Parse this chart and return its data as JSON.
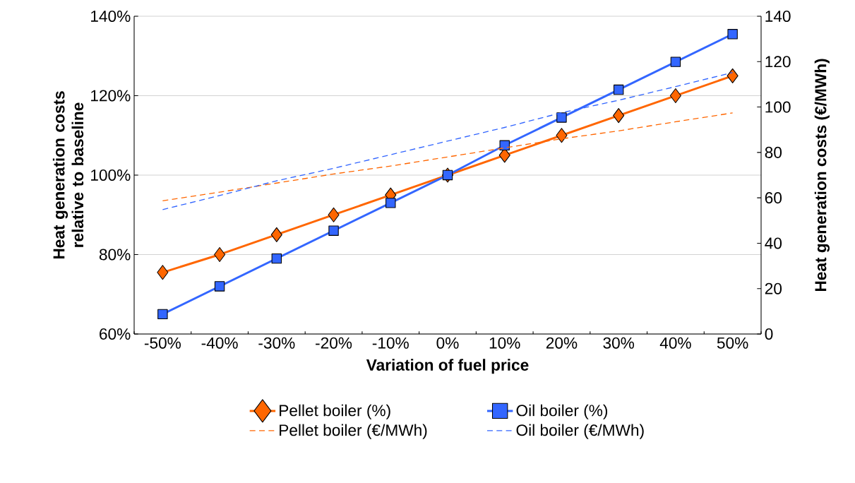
{
  "chart_data": {
    "type": "line",
    "xlabel": "Variation of fuel price",
    "ylabel": "Heat generation costs relative to baseline",
    "y2label": "Heat generation costs (€/MWh)",
    "categories": [
      "-50%",
      "-40%",
      "-30%",
      "-20%",
      "-10%",
      "0%",
      "10%",
      "20%",
      "30%",
      "40%",
      "50%"
    ],
    "series": [
      {
        "name": "Pellet boiler (%)",
        "color": "#ff6600",
        "marker": "diamond",
        "line_style": "solid",
        "values": [
          75.5,
          80,
          85,
          90,
          95,
          100,
          105,
          110,
          115,
          120,
          125
        ]
      },
      {
        "name": "Oil boiler (%)",
        "color": "#3366ff",
        "marker": "square",
        "line_style": "solid",
        "values": [
          65,
          72,
          79,
          86,
          93,
          100,
          107.5,
          114.5,
          121.5,
          128.5,
          135.5
        ]
      },
      {
        "name": "Pellet boiler (€/MWh)",
        "color": "#ff6600",
        "marker": "none",
        "line_style": "dashed",
        "axis": "y2",
        "values": [
          58.7,
          62.5,
          66.5,
          70.5,
          74,
          78,
          82,
          86,
          89.5,
          93.5,
          97.4
        ]
      },
      {
        "name": "Oil boiler (€/MWh)",
        "color": "#3366ff",
        "marker": "none",
        "line_style": "dashed",
        "axis": "y2",
        "values": [
          54.8,
          61,
          67.5,
          73,
          79,
          85,
          91,
          97.5,
          103,
          109,
          115.2
        ]
      }
    ],
    "ylim": [
      60,
      140
    ],
    "yticks": [
      {
        "value": 60,
        "label": "60%"
      },
      {
        "value": 80,
        "label": "80%"
      },
      {
        "value": 100,
        "label": "100%"
      },
      {
        "value": 120,
        "label": "120%"
      },
      {
        "value": 140,
        "label": "140%"
      }
    ],
    "y2lim": [
      0,
      140
    ],
    "y2ticks": [
      0,
      20,
      40,
      60,
      80,
      100,
      120,
      140
    ],
    "grid": "y",
    "legend": "bottom"
  }
}
